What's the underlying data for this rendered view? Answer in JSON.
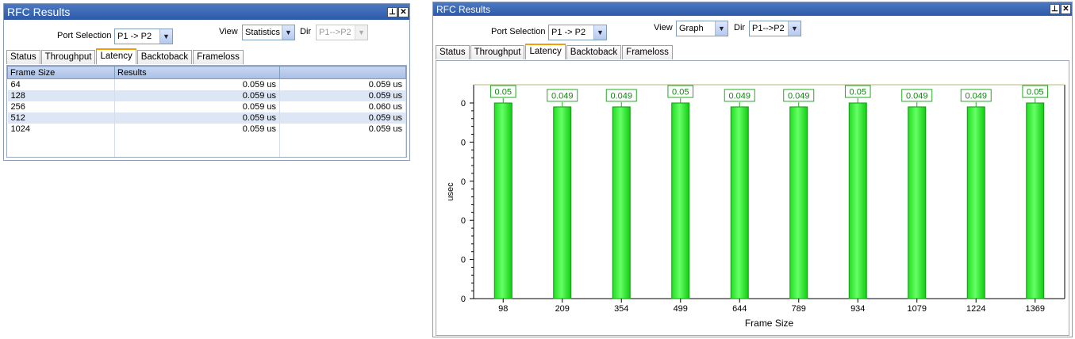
{
  "left": {
    "title": "RFC Results",
    "pin_icon": "pin-icon",
    "close_icon": "close-icon",
    "port_label": "Port Selection",
    "port_value": "P1 -> P2",
    "view_label": "View",
    "view_value": "Statistics",
    "dir_label": "Dir",
    "dir_value": "P1-->P2",
    "tabs": [
      {
        "label": "Status"
      },
      {
        "label": "Throughput"
      },
      {
        "label": "Latency"
      },
      {
        "label": "Backtoback"
      },
      {
        "label": "Frameloss"
      }
    ],
    "columns": [
      "Frame Size",
      "Results",
      ""
    ],
    "rows": [
      {
        "size": "64",
        "r1": "0.059 us",
        "r2": "0.059 us"
      },
      {
        "size": "128",
        "r1": "0.059 us",
        "r2": "0.059 us"
      },
      {
        "size": "256",
        "r1": "0.059 us",
        "r2": "0.060 us"
      },
      {
        "size": "512",
        "r1": "0.059 us",
        "r2": "0.059 us"
      },
      {
        "size": "1024",
        "r1": "0.059 us",
        "r2": "0.059 us"
      }
    ]
  },
  "right": {
    "title": "RFC Results",
    "pin_icon": "pin-icon",
    "close_icon": "close-icon",
    "port_label": "Port Selection",
    "port_value": "P1 -> P2",
    "view_label": "View",
    "view_value": "Graph",
    "dir_label": "Dir",
    "dir_value": "P1-->P2",
    "tabs": [
      {
        "label": "Status"
      },
      {
        "label": "Throughput"
      },
      {
        "label": "Latency"
      },
      {
        "label": "Backtoback"
      },
      {
        "label": "Frameloss"
      }
    ]
  },
  "chart_data": {
    "type": "bar",
    "categories": [
      "98",
      "209",
      "354",
      "499",
      "644",
      "789",
      "934",
      "1079",
      "1224",
      "1369"
    ],
    "values": [
      0.05,
      0.049,
      0.049,
      0.05,
      0.049,
      0.049,
      0.05,
      0.049,
      0.049,
      0.05
    ],
    "data_labels": [
      "0.05",
      "0.049",
      "0.049",
      "0.05",
      "0.049",
      "0.049",
      "0.05",
      "0.049",
      "0.049",
      "0.05"
    ],
    "y_tick_labels": [
      "0",
      "0",
      "0",
      "0",
      "0",
      "0"
    ],
    "xlabel": "Frame Size",
    "ylabel": "usec",
    "ylim": [
      0,
      0.05
    ],
    "bar_color": "#33ee33",
    "grid": false
  }
}
